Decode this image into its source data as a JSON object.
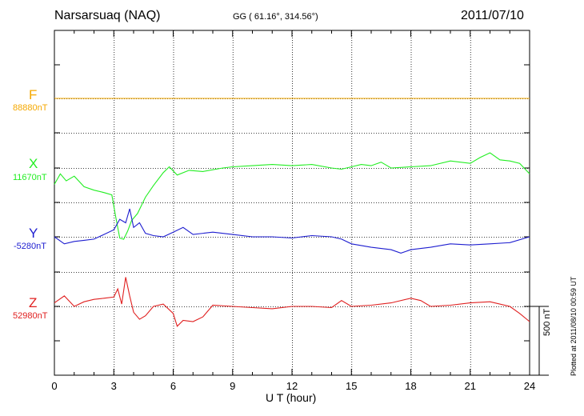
{
  "header": {
    "station": "Narsarsuaq (NAQ)",
    "coords": "GG ( 61.16°, 314.56°)",
    "date": "2011/07/10"
  },
  "footer": {
    "plotted": "Plotted at 2011/08/10 00:59 UT"
  },
  "scale_bar": {
    "label": "500 nT",
    "value_nT": 500
  },
  "chart_data": {
    "type": "line",
    "xlabel": "U T (hour)",
    "xlim": [
      0,
      24
    ],
    "xticks": [
      "0",
      "3",
      "6",
      "9",
      "12",
      "15",
      "18",
      "21",
      "24"
    ],
    "grid": true,
    "series": [
      {
        "name": "F",
        "baseline_label": "88880nT",
        "color": "#f5a800",
        "x": [
          0,
          3,
          6,
          9,
          12,
          15,
          18,
          21,
          24
        ],
        "values": [
          0,
          0,
          0,
          0,
          0,
          0,
          0,
          0,
          0
        ]
      },
      {
        "name": "X",
        "baseline_label": "11670nT",
        "color": "#22ee22",
        "x": [
          0,
          0.3,
          0.6,
          1.0,
          1.5,
          2.0,
          2.5,
          2.9,
          3.1,
          3.3,
          3.5,
          3.7,
          3.9,
          4.2,
          4.6,
          5.0,
          5.5,
          5.8,
          6.2,
          6.8,
          7.5,
          8.5,
          9.0,
          10,
          11,
          12,
          13,
          14,
          14.5,
          15,
          15.5,
          16,
          16.5,
          17,
          18,
          19,
          20,
          21,
          21.5,
          22,
          22.5,
          23,
          23.5,
          24
        ],
        "values": [
          -140,
          -50,
          -110,
          -70,
          -160,
          -190,
          -210,
          -230,
          -420,
          -600,
          -610,
          -540,
          -450,
          -390,
          -250,
          -150,
          -40,
          10,
          -60,
          -20,
          -30,
          0,
          10,
          20,
          30,
          20,
          30,
          0,
          -10,
          10,
          30,
          20,
          50,
          0,
          10,
          20,
          60,
          40,
          90,
          130,
          70,
          60,
          40,
          -50
        ]
      },
      {
        "name": "Y",
        "baseline_label": "-5280nT",
        "color": "#1e1ed0",
        "x": [
          0,
          0.5,
          1.0,
          1.5,
          2.0,
          2.5,
          3.0,
          3.3,
          3.6,
          3.8,
          4.0,
          4.3,
          4.6,
          5.0,
          5.5,
          6.0,
          6.5,
          7.0,
          8.0,
          9.0,
          10,
          11,
          12,
          13,
          14,
          14.5,
          15,
          16,
          17,
          17.5,
          18,
          19,
          20,
          21,
          22,
          23,
          24
        ],
        "values": [
          0,
          -60,
          -40,
          -30,
          -20,
          20,
          60,
          150,
          120,
          240,
          80,
          120,
          30,
          10,
          0,
          40,
          80,
          20,
          40,
          20,
          0,
          0,
          -10,
          10,
          0,
          -20,
          -60,
          -90,
          -110,
          -140,
          -110,
          -90,
          -60,
          -70,
          -60,
          -50,
          0
        ]
      },
      {
        "name": "Z",
        "baseline_label": "52980nT",
        "color": "#e02020",
        "x": [
          0,
          0.5,
          1.0,
          1.5,
          2.0,
          2.5,
          3.0,
          3.2,
          3.4,
          3.6,
          3.8,
          4.0,
          4.3,
          4.6,
          5.0,
          5.5,
          6.0,
          6.2,
          6.5,
          7.0,
          7.5,
          8.0,
          9.0,
          10,
          11,
          12,
          13,
          14,
          14.5,
          15,
          16,
          17,
          18,
          18.5,
          19,
          20,
          21,
          22,
          23,
          23.5,
          24
        ],
        "values": [
          30,
          90,
          0,
          40,
          60,
          70,
          80,
          150,
          20,
          250,
          90,
          -50,
          -110,
          -80,
          0,
          20,
          -60,
          -170,
          -120,
          -130,
          -90,
          10,
          0,
          -10,
          -20,
          0,
          0,
          -10,
          50,
          0,
          10,
          30,
          70,
          50,
          0,
          10,
          30,
          40,
          0,
          -60,
          -130
        ]
      }
    ]
  }
}
